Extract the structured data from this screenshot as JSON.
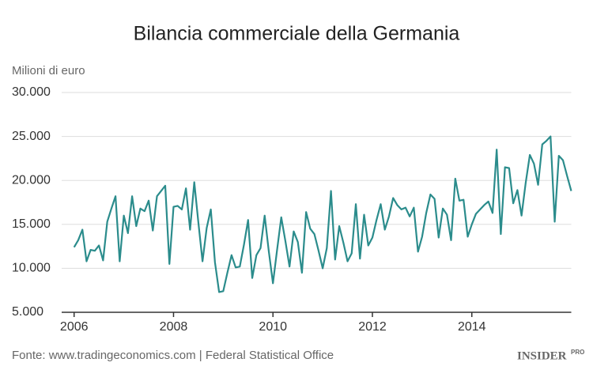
{
  "chart_data": {
    "type": "line",
    "title": "Bilancia commerciale della Germania",
    "y_label": "Milioni di euro",
    "source": "Fonte: www.tradingeconomics.com | Federal Statistical Office",
    "logo": "INSIDER",
    "logo_sup": "PRO",
    "x": [
      2006,
      2006.083,
      2006.167,
      2006.25,
      2006.333,
      2006.417,
      2006.5,
      2006.583,
      2006.667,
      2006.75,
      2006.833,
      2006.917,
      2007,
      2007.083,
      2007.167,
      2007.25,
      2007.333,
      2007.417,
      2007.5,
      2007.583,
      2007.667,
      2007.75,
      2007.833,
      2007.917,
      2008,
      2008.083,
      2008.167,
      2008.25,
      2008.333,
      2008.417,
      2008.5,
      2008.583,
      2008.667,
      2008.75,
      2008.833,
      2008.917,
      2009,
      2009.083,
      2009.167,
      2009.25,
      2009.333,
      2009.417,
      2009.5,
      2009.583,
      2009.667,
      2009.75,
      2009.833,
      2009.917,
      2010,
      2010.083,
      2010.167,
      2010.25,
      2010.333,
      2010.417,
      2010.5,
      2010.583,
      2010.667,
      2010.75,
      2010.833,
      2010.917,
      2011,
      2011.083,
      2011.167,
      2011.25,
      2011.333,
      2011.417,
      2011.5,
      2011.583,
      2011.667,
      2011.75,
      2011.833,
      2011.917,
      2012,
      2012.083,
      2012.167,
      2012.25,
      2012.333,
      2012.417,
      2012.5,
      2012.583,
      2012.667,
      2012.75,
      2012.833,
      2012.917,
      2013,
      2013.083,
      2013.167,
      2013.25,
      2013.333,
      2013.417,
      2013.5,
      2013.583,
      2013.667,
      2013.75,
      2013.833,
      2013.917,
      2014,
      2014.083,
      2014.167,
      2014.25,
      2014.333,
      2014.417,
      2014.5,
      2014.583,
      2014.667,
      2014.75,
      2014.833,
      2014.917,
      2015,
      2015.083,
      2015.167,
      2015.25,
      2015.333,
      2015.417,
      2015.5,
      2015.583,
      2015.667,
      2015.75,
      2015.833,
      2015.917,
      2016
    ],
    "series": [
      {
        "color": "#2b8c8c",
        "values": [
          12400,
          13200,
          14400,
          10800,
          12100,
          12000,
          12600,
          10900,
          15300,
          16800,
          18200,
          10800,
          16000,
          14000,
          18200,
          14800,
          16800,
          16500,
          17700,
          14300,
          18200,
          18800,
          19400,
          10500,
          17000,
          17100,
          16700,
          19100,
          14400,
          19800,
          15200,
          10800,
          14600,
          16700,
          10700,
          7300,
          7400,
          9500,
          11500,
          10100,
          10200,
          12700,
          15500,
          8900,
          11500,
          12300,
          16000,
          11900,
          8300,
          12100,
          15800,
          13100,
          10200,
          14200,
          13000,
          9500,
          16400,
          14500,
          13900,
          12000,
          10000,
          12300,
          18800,
          11000,
          14800,
          12900,
          10800,
          11700,
          17300,
          11100,
          16100,
          12600,
          13500,
          15500,
          17300,
          14400,
          15900,
          18000,
          17200,
          16700,
          16900,
          15900,
          16900,
          11900,
          13600,
          16300,
          18400,
          17900,
          13500,
          16800,
          16100,
          13200,
          20200,
          17700,
          17800,
          13600,
          15000,
          16200,
          16700,
          17200,
          17600,
          16300,
          23500,
          13900,
          21500,
          21400,
          17400,
          18900,
          16000,
          19700,
          22900,
          21900,
          19500,
          24100,
          24500,
          25000,
          15300,
          22800,
          22300,
          20500,
          18800
        ]
      }
    ],
    "xlim": [
      2005.75,
      2016
    ],
    "xticks": [
      2006,
      2008,
      2010,
      2012,
      2014
    ],
    "ylim": [
      5000,
      30000
    ],
    "yticks": [
      {
        "value": 5000,
        "label": "5.000"
      },
      {
        "value": 10000,
        "label": "10.000"
      },
      {
        "value": 15000,
        "label": "15.000"
      },
      {
        "value": 20000,
        "label": "20.000"
      },
      {
        "value": 25000,
        "label": "25.000"
      },
      {
        "value": 30000,
        "label": "30.000"
      }
    ],
    "grid": true
  }
}
